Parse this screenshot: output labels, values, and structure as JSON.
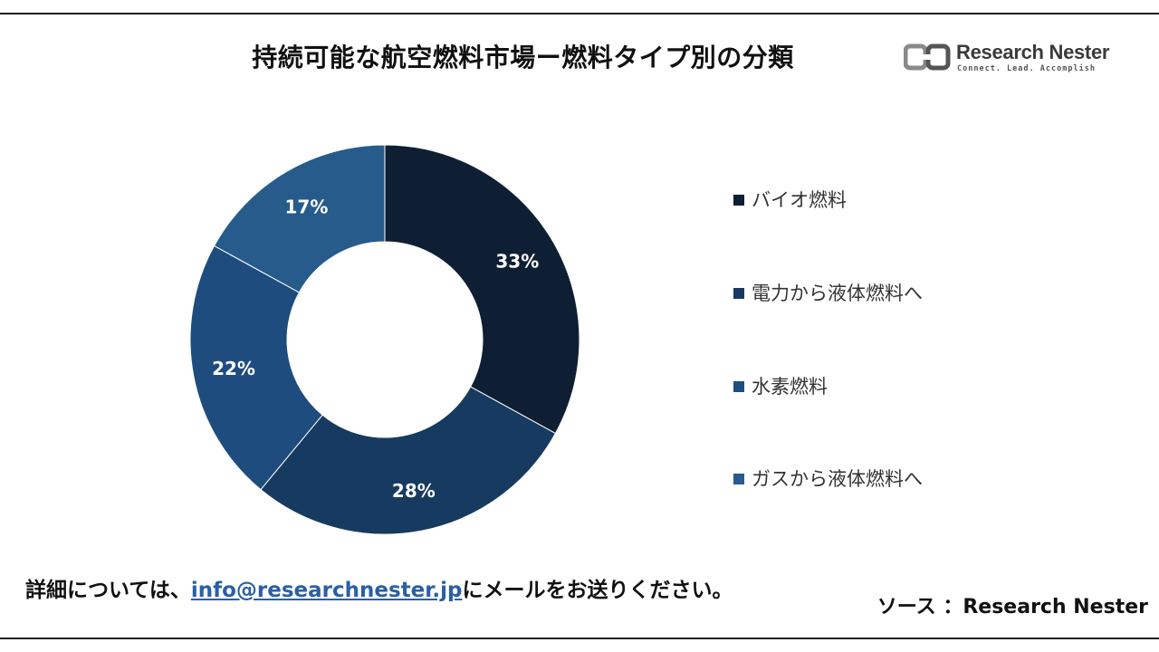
{
  "title": "持続可能な航空燃料市場ー燃料タイプ別の分類",
  "logo": {
    "name": "Research Nester",
    "tagline": "Connect. Lead. Accomplish"
  },
  "chart_data": {
    "type": "pie",
    "title": "持続可能な航空燃料市場ー燃料タイプ別の分類",
    "donut": true,
    "categories": [
      "バイオ燃料",
      "電力から液体燃料へ",
      "水素燃料",
      "ガスから液体燃料へ"
    ],
    "values": [
      33,
      28,
      22,
      17
    ],
    "labels": [
      "33%",
      "28%",
      "22%",
      "17%"
    ],
    "colors": [
      "#0f1f33",
      "#173a60",
      "#1e4c7e",
      "#265b8c"
    ],
    "legend_placement": "right"
  },
  "legend": [
    {
      "label": "バイオ燃料",
      "color": "#0f1f33"
    },
    {
      "label": "電力から液体燃料へ",
      "color": "#173a60"
    },
    {
      "label": "水素燃料",
      "color": "#1e4c7e"
    },
    {
      "label": "ガスから液体燃料へ",
      "color": "#265b8c"
    }
  ],
  "footer": {
    "prefix": "詳細については、",
    "email": "info@researchnester.jp",
    "suffix": "にメールをお送りください。"
  },
  "source": "ソース ：Research Nester"
}
